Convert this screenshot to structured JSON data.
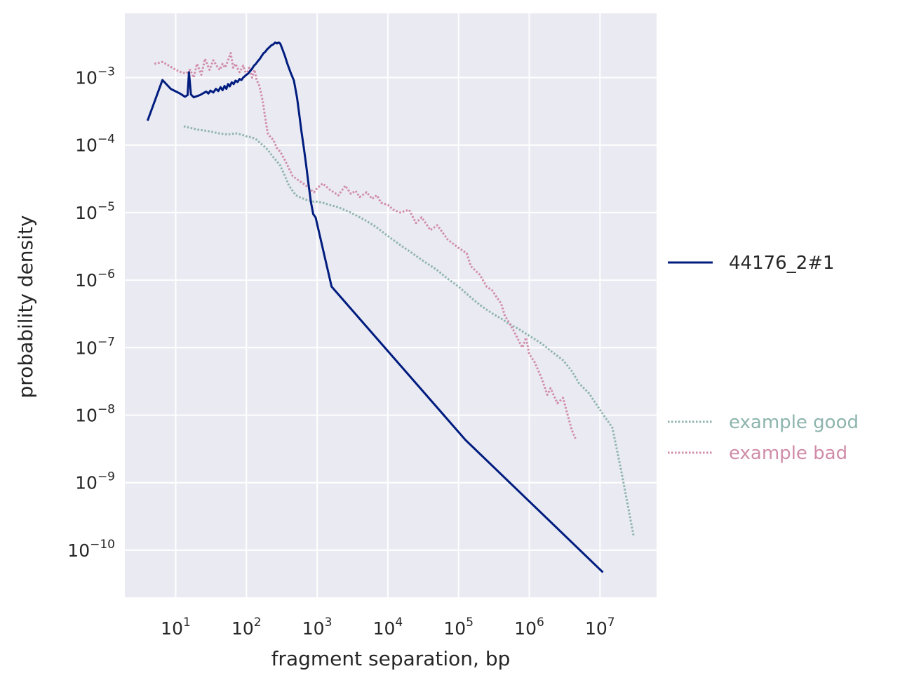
{
  "chart_data": {
    "type": "line",
    "xscale": "log",
    "yscale": "log",
    "xlabel": "fragment separation, bp",
    "ylabel": "probability density",
    "xlim": [
      2,
      60000000
    ],
    "ylim": [
      2e-11,
      0.008
    ],
    "grid": true,
    "xticks": [
      {
        "base": "10",
        "exp": "1",
        "value": 10
      },
      {
        "base": "10",
        "exp": "2",
        "value": 100
      },
      {
        "base": "10",
        "exp": "3",
        "value": 1000
      },
      {
        "base": "10",
        "exp": "4",
        "value": 10000
      },
      {
        "base": "10",
        "exp": "5",
        "value": 100000
      },
      {
        "base": "10",
        "exp": "6",
        "value": 1000000
      },
      {
        "base": "10",
        "exp": "7",
        "value": 10000000
      }
    ],
    "yticks": [
      {
        "base": "10",
        "exp": "−3",
        "value": 0.001
      },
      {
        "base": "10",
        "exp": "−4",
        "value": 0.0001
      },
      {
        "base": "10",
        "exp": "−5",
        "value": 1e-05
      },
      {
        "base": "10",
        "exp": "−6",
        "value": 1e-06
      },
      {
        "base": "10",
        "exp": "−7",
        "value": 1e-07
      },
      {
        "base": "10",
        "exp": "−8",
        "value": 1e-08
      },
      {
        "base": "10",
        "exp": "−9",
        "value": 1e-09
      },
      {
        "base": "10",
        "exp": "−10",
        "value": 1e-10
      }
    ],
    "legend_placement": "right",
    "series": [
      {
        "name": "44176_2#1",
        "style": "solid",
        "color": "#001c7f",
        "legend_group": "upper",
        "x": [
          4,
          6.5,
          8.5,
          11.5,
          13.5,
          14.7,
          15.4,
          16.4,
          18,
          22,
          24,
          27,
          29,
          31,
          34,
          37,
          40,
          43,
          46,
          49,
          52,
          55,
          58,
          62,
          66,
          70,
          75,
          80,
          85,
          90,
          95,
          100,
          106,
          113,
          120,
          128,
          136,
          145,
          155,
          165,
          175,
          185,
          195,
          210,
          225,
          240,
          255,
          270,
          285,
          300,
          320,
          350,
          380,
          420,
          470,
          520,
          560,
          600,
          650,
          700,
          760,
          820,
          880,
          950,
          1600,
          125000,
          11000000
        ],
        "y": [
          0.00023,
          0.00092,
          0.00068,
          0.00058,
          0.00052,
          0.00055,
          0.0012,
          0.00056,
          0.00051,
          0.00055,
          0.00058,
          0.00062,
          0.00058,
          0.00064,
          0.0006,
          0.00068,
          0.00063,
          0.00072,
          0.00065,
          0.00075,
          0.00068,
          0.0008,
          0.00074,
          0.00085,
          0.0008,
          0.0009,
          0.00086,
          0.00095,
          0.00092,
          0.001,
          0.00105,
          0.0011,
          0.00115,
          0.00125,
          0.00135,
          0.0015,
          0.0016,
          0.00175,
          0.0019,
          0.0021,
          0.0023,
          0.0024,
          0.0026,
          0.0028,
          0.003,
          0.0031,
          0.0033,
          0.0032,
          0.0033,
          0.0032,
          0.0027,
          0.0021,
          0.0016,
          0.0012,
          0.0009,
          0.0005,
          0.00028,
          0.00016,
          9e-05,
          5e-05,
          2.5e-05,
          1.4e-05,
          9.5e-06,
          8.5e-06,
          8e-07,
          4.3e-09,
          4.7e-11
        ]
      },
      {
        "name": "example good",
        "style": "dotted",
        "color": "#8db4ad",
        "legend_group": "lower",
        "x": [
          13,
          20,
          30,
          40,
          50,
          60,
          70,
          80,
          90,
          100,
          120,
          140,
          160,
          180,
          200,
          230,
          260,
          300,
          350,
          400,
          450,
          500,
          600,
          700,
          800,
          900,
          1000,
          1200,
          1500,
          2000,
          3000,
          5000,
          7000,
          10000,
          15000,
          20000,
          30000,
          50000,
          70000,
          100000,
          150000,
          200000,
          300000,
          400000,
          500000,
          700000,
          1000000,
          1500000,
          2000000,
          3000000,
          4000000,
          5000000,
          7000000,
          10000000,
          15000000,
          20000000,
          30000000
        ],
        "y": [
          0.00019,
          0.00017,
          0.00016,
          0.00015,
          0.000145,
          0.000145,
          0.00015,
          0.000145,
          0.00014,
          0.000135,
          0.00013,
          0.00012,
          0.000105,
          9.5e-05,
          8.5e-05,
          7e-05,
          6e-05,
          5e-05,
          3.5e-05,
          2.5e-05,
          2.1e-05,
          1.8e-05,
          1.65e-05,
          1.55e-05,
          1.5e-05,
          1.45e-05,
          1.45e-05,
          1.4e-05,
          1.3e-05,
          1.2e-05,
          1e-05,
          7.5e-06,
          6e-06,
          4.5e-06,
          3.3e-06,
          2.7e-06,
          2e-06,
          1.4e-06,
          1.05e-06,
          8e-07,
          5.5e-07,
          4.3e-07,
          3.2e-07,
          2.7e-07,
          2.3e-07,
          1.9e-07,
          1.5e-07,
          1.15e-07,
          9e-08,
          6.5e-08,
          4.5e-08,
          3e-08,
          2.1e-08,
          1.2e-08,
          6.5e-09,
          1.5e-09,
          1.6e-10
        ]
      },
      {
        "name": "example bad",
        "style": "dotted",
        "color": "#d08ca8",
        "legend_group": "lower",
        "x": [
          5,
          6.5,
          8,
          10,
          12,
          14,
          16,
          18,
          20,
          23,
          26,
          30,
          34,
          38,
          42,
          46,
          50,
          55,
          60,
          65,
          70,
          80,
          90,
          100,
          110,
          120,
          130,
          140,
          150,
          160,
          170,
          180,
          200,
          220,
          240,
          270,
          300,
          350,
          400,
          450,
          500,
          600,
          700,
          800,
          900,
          1000,
          1200,
          1500,
          2000,
          2500,
          3000,
          3500,
          4000,
          5000,
          6000,
          7000,
          8000,
          10000,
          12000,
          15000,
          20000,
          25000,
          30000,
          40000,
          50000,
          70000,
          100000,
          130000,
          150000,
          200000,
          250000,
          300000,
          350000,
          400000,
          450000,
          500000,
          600000,
          700000,
          800000,
          900000,
          1000000,
          1200000,
          1500000,
          1800000,
          2000000,
          2500000,
          3000000,
          3500000,
          4000000,
          4500000
        ],
        "y": [
          0.0016,
          0.0017,
          0.0015,
          0.0013,
          0.0012,
          0.00115,
          0.0013,
          0.001,
          0.0016,
          0.0011,
          0.0019,
          0.0013,
          0.0018,
          0.0015,
          0.0013,
          0.0016,
          0.0014,
          0.0018,
          0.0023,
          0.0014,
          0.0016,
          0.0012,
          0.0015,
          0.0011,
          0.0014,
          0.001,
          0.0013,
          0.0009,
          0.0008,
          0.0006,
          0.00045,
          0.0003,
          0.00015,
          0.00013,
          0.00012,
          9e-05,
          8e-05,
          6e-05,
          4.5e-05,
          3.5e-05,
          3.2e-05,
          2.8e-05,
          2.5e-05,
          2.2e-05,
          2e-05,
          2.3e-05,
          2.7e-05,
          2.2e-05,
          1.8e-05,
          2.5e-05,
          1.9e-05,
          2.1e-05,
          1.7e-05,
          2e-05,
          1.6e-05,
          1.8e-05,
          1.4e-05,
          1.3e-05,
          1.1e-05,
          1e-05,
          1.1e-05,
          7e-06,
          8.5e-06,
          5.5e-06,
          6.5e-06,
          4e-06,
          3e-06,
          2.5e-06,
          1.6e-06,
          1.2e-06,
          8e-07,
          7e-07,
          5.5e-07,
          4.5e-07,
          3e-07,
          2.5e-07,
          1.8e-07,
          1.3e-07,
          1e-07,
          1.4e-07,
          8e-08,
          6e-08,
          3.5e-08,
          2e-08,
          2.5e-08,
          1.5e-08,
          1.8e-08,
          1e-08,
          6e-09,
          4.5e-09
        ]
      }
    ]
  }
}
